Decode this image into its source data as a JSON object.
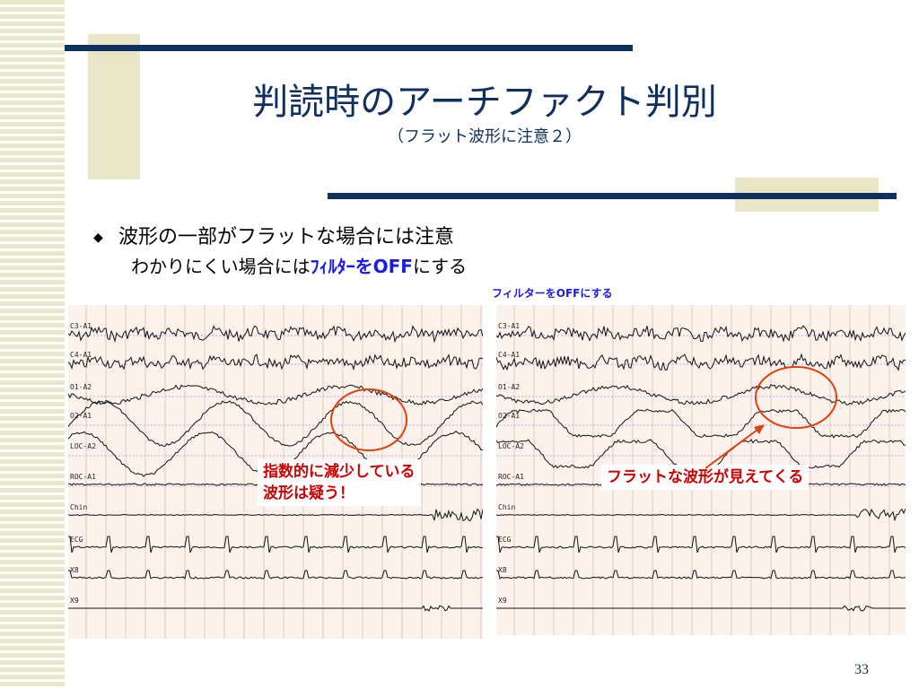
{
  "slide": {
    "title": "判読時のアーチファクト判別",
    "subtitle": "（フラット波形に注意２）",
    "bullet": "波形の一部がフラットな場合には注意",
    "subline_pre": "わかりにくい場合には",
    "subline_highlight": "ﾌｨﾙﾀｰをOFF",
    "subline_post": "にする",
    "off_note": "フィルターをOFFにする",
    "page_number": "33",
    "bullet_icon": "diamond-bullet-icon"
  },
  "colors": {
    "navy": "#0f2f5f",
    "beige": "#e8e6c6",
    "highlight_blue": "#1a1ae6",
    "alert_red": "#cc0000",
    "eeg_background": "#fbf2ec"
  },
  "eeg_left": {
    "channels": [
      "C3-A1",
      "C4-A1",
      "O1-A2",
      "O2-A1",
      "LOC-A2",
      "ROC-A1",
      "Chin",
      "ECG",
      "X8",
      "X9"
    ],
    "callout_line1": "指数的に減少している",
    "callout_line2": "波形は疑う！"
  },
  "eeg_right": {
    "channels": [
      "C3-A1",
      "C4-A1",
      "O1-A2",
      "O2-A1",
      "LOC-A2",
      "ROC-A1",
      "Chin",
      "ECG",
      "X8",
      "X9"
    ],
    "callout": "フラットな波形が見えてくる"
  }
}
